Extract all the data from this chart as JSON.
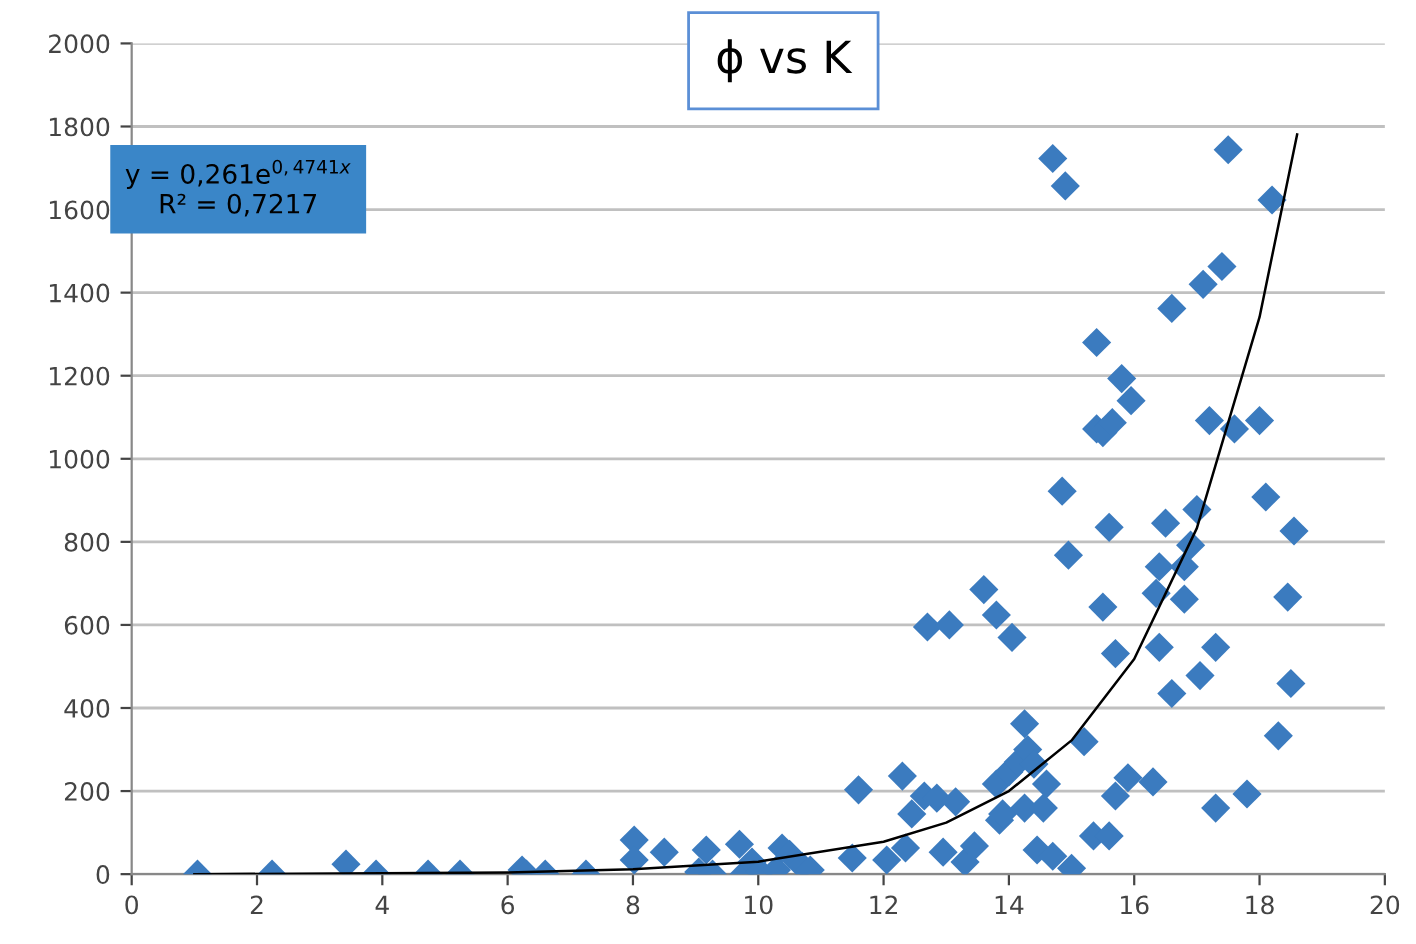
{
  "chart_data": {
    "type": "scatter",
    "title": "ϕ vs K",
    "annotations": [
      "y = 0,261e$^{0,4741x}$\nR² = 0,7217"
    ],
    "xlim": [
      0,
      20
    ],
    "xticks": [
      0,
      2,
      4,
      6,
      8,
      10,
      12,
      14,
      16,
      18,
      20
    ],
    "ylim": [
      0,
      2000
    ],
    "yticks": [
      0,
      200,
      400,
      600,
      800,
      1000,
      1200,
      1400,
      1600,
      1800,
      2000
    ],
    "grid": "y",
    "legend": false,
    "marker": "diamond",
    "series": [
      {
        "color": "#3b7bbf",
        "x": [
          1.05,
          2.24,
          3.42,
          3.9,
          4.73,
          5.24,
          6.23,
          6.3,
          6.6,
          7.25,
          8.02,
          8.02,
          8.5,
          9.05,
          9.17,
          9.27,
          9.7,
          9.77,
          9.9,
          10.03,
          10.29,
          10.38,
          10.5,
          10.7,
          10.83,
          11.5,
          11.6,
          12.05,
          12.3,
          12.35,
          12.45,
          12.65,
          12.7,
          12.85,
          12.95,
          13.05,
          13.15,
          13.3,
          13.45,
          13.6,
          13.8,
          13.8,
          13.85,
          13.9,
          14.0,
          14.05,
          14.15,
          14.25,
          14.25,
          14.3,
          14.4,
          14.45,
          14.55,
          14.6,
          14.7,
          14.7,
          14.85,
          14.9,
          14.95,
          15.0,
          15.2,
          15.35,
          15.4,
          15.4,
          15.5,
          15.5,
          15.6,
          15.6,
          15.65,
          15.7,
          15.7,
          15.8,
          15.9,
          15.95,
          16.3,
          16.35,
          16.4,
          16.4,
          16.5,
          16.6,
          16.6,
          16.8,
          16.8,
          16.9,
          17.0,
          17.05,
          17.1,
          17.2,
          17.3,
          17.3,
          17.4,
          17.5,
          17.6,
          17.8,
          18.0,
          18.1,
          18.2,
          18.3,
          18.45,
          18.5,
          18.55
        ],
        "values": [
          0,
          0,
          24,
          0,
          0,
          0,
          10,
          0,
          0,
          0,
          82,
          34,
          53,
          5,
          58,
          0,
          72,
          0,
          29,
          5,
          10,
          63,
          48,
          19,
          10,
          39,
          203,
          34,
          236,
          63,
          145,
          188,
          595,
          183,
          53,
          600,
          174,
          29,
          68,
          685,
          624,
          217,
          130,
          145,
          246,
          570,
          270,
          362,
          159,
          300,
          265,
          58,
          159,
          217,
          1723,
          43,
          922,
          1657,
          768,
          14,
          319,
          92,
          1280,
          1072,
          1063,
          643,
          92,
          835,
          1087,
          531,
          188,
          1193,
          232,
          1140,
          222,
          676,
          546,
          740,
          845,
          1362,
          435,
          740,
          662,
          792,
          878,
          478,
          1420,
          1092,
          546,
          159,
          1463,
          1744,
          1072,
          193,
          1092,
          908,
          1623,
          333,
          667,
          459,
          826
        ]
      },
      {
        "type": "line",
        "color": "#000000",
        "marker": "none",
        "x": [
          1,
          4,
          6,
          8,
          10,
          12,
          13,
          14,
          15,
          16,
          17,
          18,
          18.6
        ],
        "values": [
          0,
          2,
          4,
          12,
          30,
          78,
          124,
          200,
          322,
          518,
          833,
          1341,
          1781
        ]
      }
    ]
  }
}
